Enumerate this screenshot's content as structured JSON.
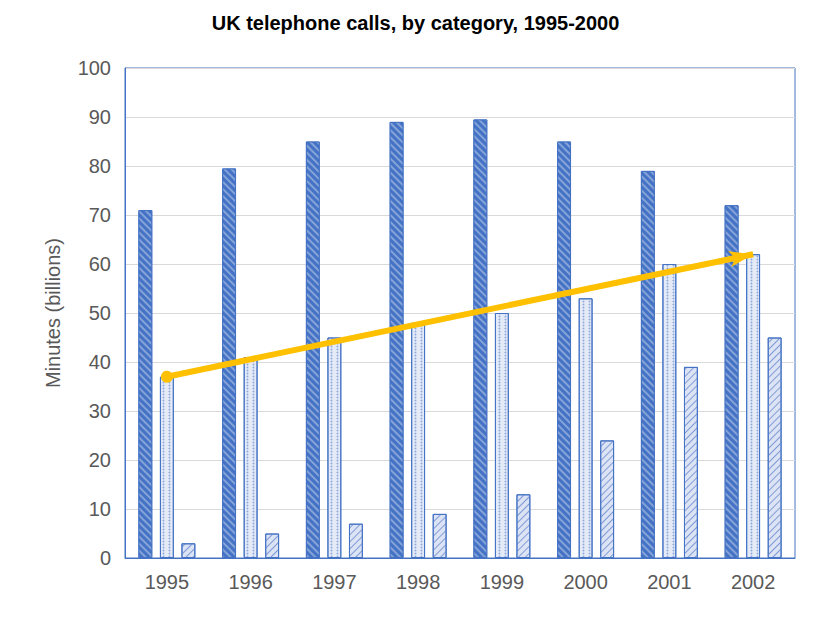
{
  "chart_data": {
    "type": "bar",
    "title": "UK telephone calls, by category, 1995-2000",
    "y_label": "Minutes (billions)",
    "categories": [
      "1995",
      "1996",
      "1997",
      "1998",
      "1999",
      "2000",
      "2001",
      "2002"
    ],
    "series": [
      {
        "color": "#4472c4",
        "values": [
          71,
          79.5,
          85,
          89,
          89.5,
          85,
          79,
          72
        ]
      },
      {
        "color": "#e4eaf6",
        "values": [
          37,
          41,
          45,
          48,
          50,
          53,
          60,
          62
        ]
      },
      {
        "color": "#dbe3f4",
        "values": [
          3,
          5,
          7,
          9,
          13,
          24,
          39,
          45
        ]
      }
    ],
    "ylim": [
      0,
      100
    ],
    "yticks": [
      0,
      10,
      20,
      30,
      40,
      50,
      60,
      70,
      80,
      90,
      100
    ],
    "grid": true
  }
}
